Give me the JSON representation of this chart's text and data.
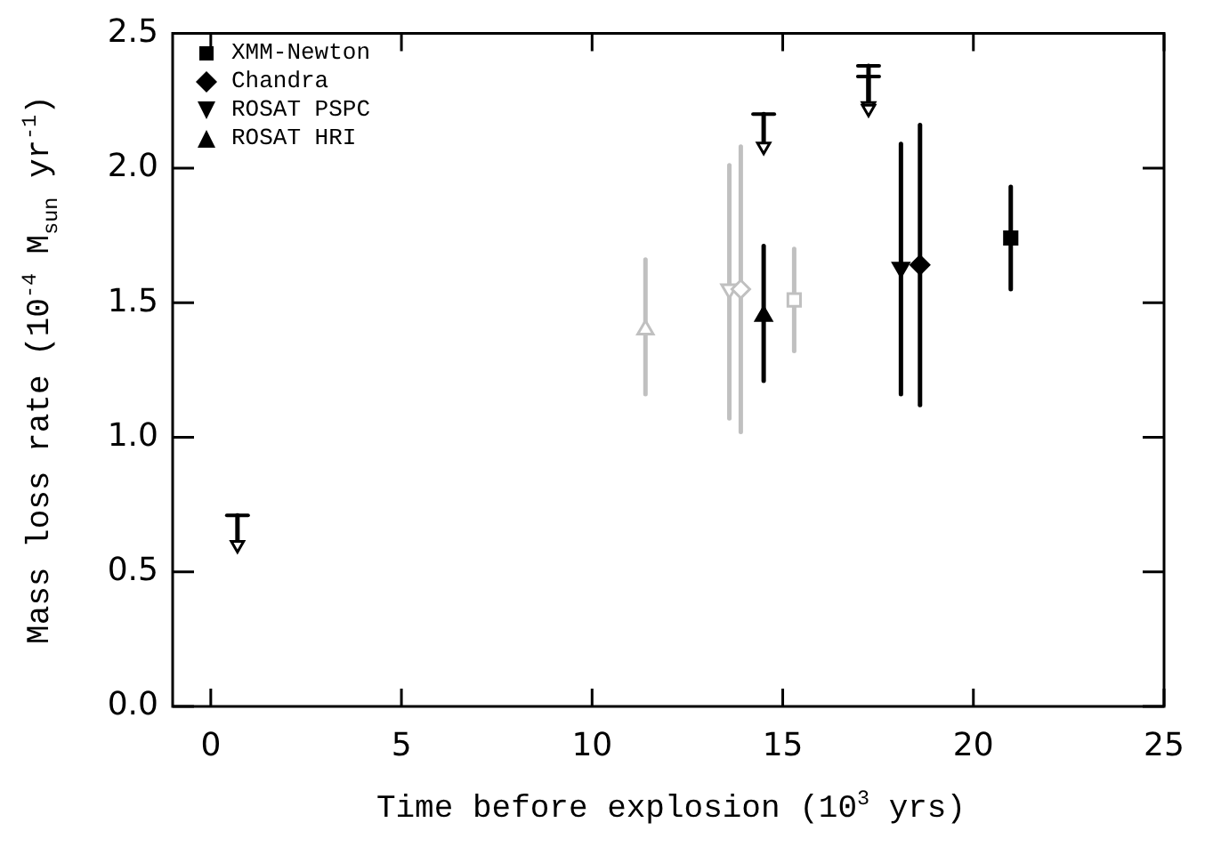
{
  "chart_data": {
    "type": "scatter",
    "xlabel": "Time before explosion (10$^{3}$ yrs)",
    "ylabel": "Mass loss rate (10$^{-4}$ M$_{sun}$ yr$^{-1}$)",
    "xlim": [
      -1,
      25
    ],
    "xticks": [
      0,
      5,
      10,
      15,
      20,
      25
    ],
    "ylim": [
      0,
      2.5
    ],
    "yticks": [
      {
        "value": 0,
        "label": "0.0"
      },
      {
        "value": 0.5,
        "label": "0.5"
      },
      {
        "value": 1,
        "label": "1.0"
      },
      {
        "value": 1.5,
        "label": "1.5"
      },
      {
        "value": 2,
        "label": "2.0"
      },
      {
        "value": 2.5,
        "label": "2.5"
      }
    ],
    "grid": false,
    "legend": "top left",
    "series": [
      {
        "name": "XMM-Newton",
        "color": "#000000",
        "marker": "square",
        "x": [
          20.98
        ],
        "values": [
          1.74
        ],
        "errors": [
          [
            1.55,
            1.93
          ]
        ]
      },
      {
        "name": "Chandra",
        "color": "#000000",
        "marker": "diamond",
        "x": [
          18.6
        ],
        "values": [
          1.64
        ],
        "errors": [
          [
            1.12,
            2.16
          ]
        ]
      },
      {
        "name": "ROSAT PSPC",
        "color": "#000000",
        "marker": "triangle_down",
        "x": [
          18.1
        ],
        "values": [
          1.63
        ],
        "errors": [
          [
            1.16,
            2.09
          ]
        ]
      },
      {
        "name": "ROSAT HRI",
        "color": "#000000",
        "marker": "triangle",
        "x": [
          14.5
        ],
        "values": [
          1.45
        ],
        "errors": [
          [
            1.21,
            1.71
          ]
        ]
      },
      {
        "color": "#c0c0c0",
        "marker": "square",
        "x": [
          15.3
        ],
        "values": [
          1.51
        ],
        "errors": [
          [
            1.32,
            1.7
          ]
        ]
      },
      {
        "color": "#c0c0c0",
        "marker": "diamond",
        "x": [
          13.9
        ],
        "values": [
          1.55
        ],
        "errors": [
          [
            1.02,
            2.08
          ]
        ]
      },
      {
        "color": "#c0c0c0",
        "marker": "triangle_down",
        "x": [
          13.6
        ],
        "values": [
          1.55
        ],
        "errors": [
          [
            1.07,
            2.01
          ]
        ]
      },
      {
        "color": "#c0c0c0",
        "marker": "triangle",
        "x": [
          11.4
        ],
        "values": [
          1.4
        ],
        "errors": [
          [
            1.16,
            1.66
          ]
        ]
      },
      {
        "color": "#000000",
        "marker": "triangle_down",
        "x": [
          0.7,
          14.5,
          17.25,
          17.25
        ],
        "values": [
          0.6,
          2.08,
          2.23,
          2.22
        ],
        "errors": [
          [
            0.6,
            0.71
          ],
          [
            2.08,
            2.2
          ],
          [
            2.23,
            2.38
          ],
          [
            2.22,
            2.34
          ]
        ]
      }
    ]
  }
}
